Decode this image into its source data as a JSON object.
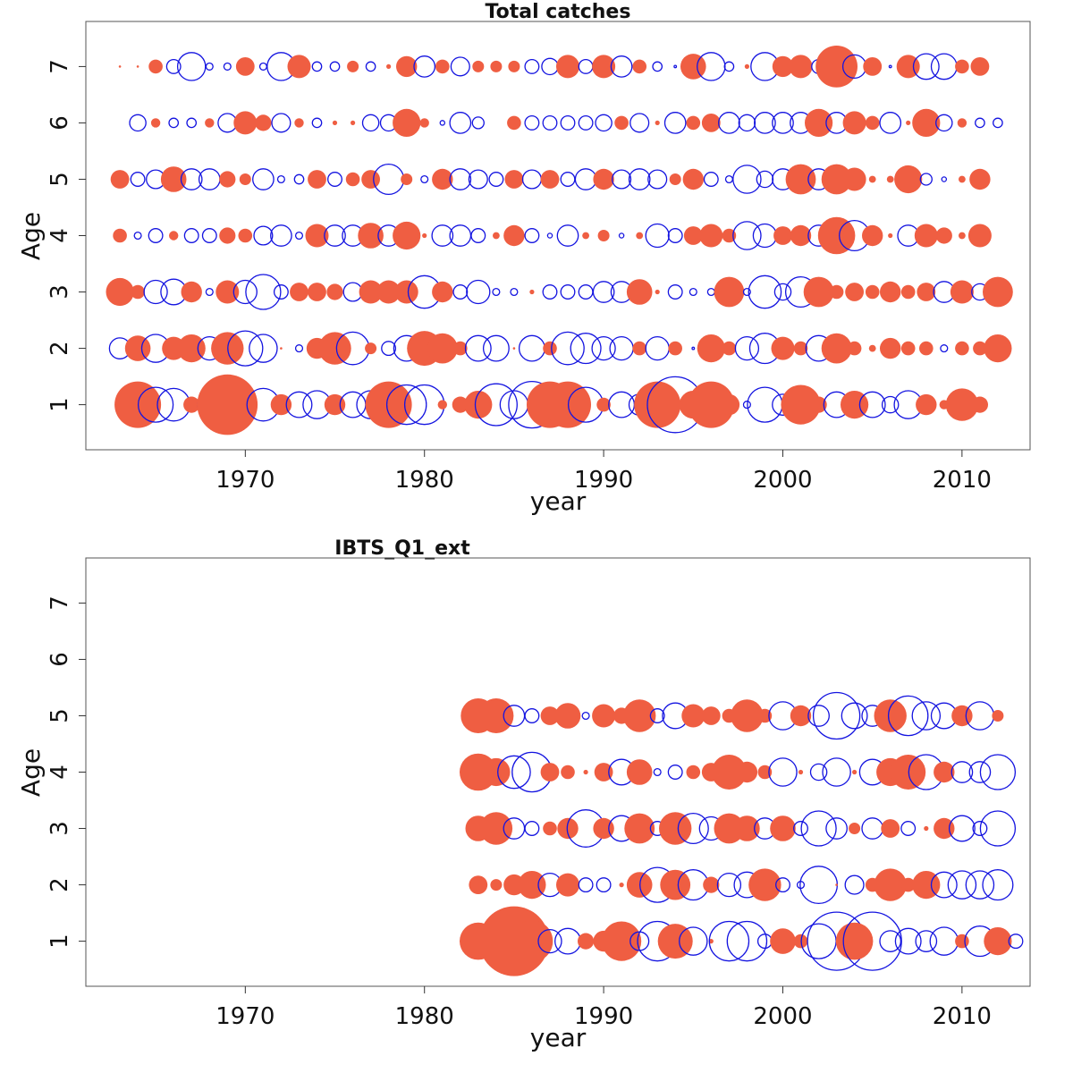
{
  "chart_data": [
    {
      "type": "scatter",
      "subtype": "bubble",
      "title": "Total catches",
      "xlabel": "year",
      "ylabel": "Age",
      "xlim": [
        1961.1,
        2013.8
      ],
      "ylim": [
        0.2,
        7.8
      ],
      "xticks": [
        1970,
        1980,
        1990,
        2000,
        2010
      ],
      "yticks": [
        1,
        2,
        3,
        4,
        5,
        6,
        7
      ],
      "encoding": "positive residual = filled red, negative residual = open blue, magnitude = bubble size",
      "colors": {
        "positive": "#ef5e42",
        "negative": "#1414e0"
      },
      "grid": false,
      "start_year": 1963,
      "series": [
        {
          "age": 7,
          "start_year": 1963,
          "values": [
            0.05,
            0.05,
            0.3,
            -0.3,
            -0.6,
            -0.15,
            -0.15,
            0.4,
            -0.15,
            -0.6,
            0.5,
            -0.2,
            -0.2,
            0.25,
            -0.2,
            0.1,
            0.45,
            -0.45,
            0.3,
            -0.4,
            0.25,
            0.25,
            0.25,
            -0.3,
            -0.35,
            0.5,
            -0.3,
            0.5,
            -0.45,
            0.3,
            -0.2,
            -0.05,
            0.55,
            -0.6,
            -0.2,
            0.1,
            -0.6,
            0.45,
            0.5,
            -0.3,
            0.9,
            -0.5,
            0.4,
            -0.05,
            0.5,
            -0.55,
            -0.55,
            0.3,
            0.4
          ]
        },
        {
          "age": 6,
          "start_year": 1963,
          "values": [
            null,
            -0.35,
            0.2,
            -0.2,
            -0.2,
            0.2,
            -0.4,
            0.5,
            0.35,
            -0.4,
            0.2,
            -0.2,
            0.1,
            0.1,
            -0.35,
            -0.35,
            0.6,
            0.2,
            -0.1,
            -0.45,
            -0.25,
            null,
            0.3,
            -0.3,
            -0.3,
            -0.3,
            -0.3,
            -0.35,
            0.3,
            -0.4,
            0.1,
            -0.45,
            0.3,
            0.4,
            -0.45,
            -0.35,
            -0.45,
            -0.45,
            -0.45,
            0.6,
            -0.45,
            0.5,
            0.3,
            -0.45,
            0.1,
            0.6,
            -0.35,
            0.2,
            -0.2,
            -0.2
          ]
        },
        {
          "age": 5,
          "start_year": 1963,
          "values": [
            0.4,
            -0.3,
            -0.4,
            0.55,
            -0.45,
            -0.45,
            0.35,
            0.25,
            -0.45,
            -0.15,
            -0.2,
            0.4,
            -0.3,
            0.3,
            0.4,
            -0.65,
            0.25,
            -0.15,
            0.45,
            -0.45,
            -0.4,
            -0.3,
            0.4,
            -0.4,
            0.4,
            -0.3,
            -0.45,
            0.45,
            -0.4,
            -0.45,
            -0.4,
            0.25,
            0.45,
            -0.3,
            -0.15,
            -0.6,
            -0.35,
            -0.45,
            0.65,
            -0.45,
            0.65,
            0.5,
            0.15,
            0.15,
            0.6,
            -0.25,
            -0.1,
            0.15,
            0.45
          ]
        },
        {
          "age": 4,
          "start_year": 1963,
          "values": [
            0.3,
            -0.15,
            -0.3,
            0.2,
            -0.3,
            -0.3,
            0.35,
            0.3,
            -0.4,
            -0.45,
            -0.15,
            0.5,
            -0.45,
            -0.45,
            0.55,
            -0.45,
            0.6,
            0.1,
            -0.45,
            -0.45,
            -0.3,
            0.15,
            0.45,
            -0.3,
            -0.1,
            -0.45,
            0.15,
            0.25,
            -0.1,
            0.15,
            -0.5,
            -0.3,
            0.4,
            0.5,
            0.3,
            -0.6,
            -0.5,
            0.4,
            0.45,
            -0.45,
            0.8,
            -0.65,
            0.45,
            0.1,
            -0.45,
            0.5,
            0.35,
            0.15,
            0.5
          ]
        },
        {
          "age": 3,
          "start_year": 1963,
          "values": [
            0.6,
            0.3,
            -0.5,
            -0.55,
            0.45,
            -0.15,
            0.5,
            -0.5,
            -0.75,
            -0.3,
            0.4,
            0.4,
            0.35,
            -0.4,
            0.5,
            0.5,
            0.5,
            -0.7,
            0.45,
            -0.3,
            -0.5,
            -0.15,
            -0.15,
            0.1,
            -0.3,
            -0.3,
            -0.3,
            -0.45,
            -0.45,
            0.55,
            0.1,
            -0.3,
            -0.15,
            -0.15,
            0.65,
            -0.15,
            -0.7,
            -0.35,
            -0.65,
            0.65,
            0.3,
            0.4,
            0.3,
            0.45,
            0.3,
            0.4,
            -0.45,
            0.5,
            -0.35,
            0.65
          ]
        },
        {
          "age": 2,
          "start_year": 1963,
          "values": [
            -0.45,
            0.55,
            -0.6,
            0.5,
            0.6,
            -0.5,
            0.7,
            -0.75,
            -0.6,
            0.05,
            -0.15,
            0.45,
            0.7,
            -0.7,
            0.25,
            -0.3,
            -0.55,
            0.75,
            0.65,
            0.3,
            -0.55,
            -0.55,
            0.05,
            -0.55,
            0.3,
            -0.7,
            -0.65,
            -0.5,
            -0.5,
            0.3,
            -0.5,
            0.3,
            -0.05,
            0.6,
            0.3,
            -0.5,
            -0.65,
            0.5,
            0.3,
            -0.55,
            0.65,
            0.3,
            0.15,
            0.45,
            0.3,
            0.3,
            -0.15,
            0.3,
            0.3,
            0.6
          ]
        },
        {
          "age": 1,
          "start_year": 1963,
          "values": [
            null,
            1.0,
            -0.75,
            -0.7,
            0.35,
            -0.5,
            1.3,
            null,
            -0.7,
            0.45,
            -0.55,
            -0.6,
            0.45,
            -0.55,
            -0.6,
            1.0,
            -0.85,
            -0.85,
            0.2,
            0.35,
            0.6,
            -0.9,
            -0.6,
            -1.0,
            1.0,
            1.0,
            -0.75,
            0.3,
            -0.55,
            -0.45,
            1.0,
            -1.2,
            0.6,
            1.0,
            0.45,
            -0.15,
            -0.75,
            -0.45,
            0.85,
            0.35,
            -0.55,
            0.6,
            -0.55,
            -0.35,
            -0.6,
            0.45,
            0.2,
            0.7,
            0.35
          ]
        }
      ]
    },
    {
      "type": "scatter",
      "subtype": "bubble",
      "title": "IBTS_Q1_ext",
      "xlabel": "year",
      "ylabel": "Age",
      "xlim": [
        1961.1,
        2013.8
      ],
      "ylim": [
        0.2,
        7.8
      ],
      "xticks": [
        1970,
        1980,
        1990,
        2000,
        2010
      ],
      "yticks": [
        1,
        2,
        3,
        4,
        5,
        6,
        7
      ],
      "encoding": "positive residual = filled red, negative residual = open blue, magnitude = bubble size",
      "colors": {
        "positive": "#ef5e42",
        "negative": "#1414e0"
      },
      "grid": false,
      "series": [
        {
          "age": 5,
          "start_year": 1983,
          "values": [
            0.75,
            0.75,
            -0.45,
            -0.3,
            0.4,
            0.55,
            -0.15,
            0.5,
            0.35,
            0.7,
            -0.3,
            -0.55,
            0.5,
            0.4,
            0.3,
            0.7,
            0.3,
            -0.6,
            0.45,
            -0.45,
            -1.0,
            -0.55,
            -0.45,
            0.7,
            -0.85,
            -0.6,
            -0.55,
            0.45,
            -0.6,
            0.25
          ]
        },
        {
          "age": 4,
          "start_year": 1983,
          "values": [
            0.8,
            0.6,
            -0.7,
            -0.85,
            0.4,
            0.3,
            0.1,
            0.4,
            -0.55,
            0.55,
            -0.15,
            -0.3,
            0.3,
            0.4,
            0.75,
            0.45,
            0.3,
            -0.6,
            0.1,
            -0.35,
            -0.6,
            0.1,
            -0.55,
            0.6,
            0.75,
            -0.75,
            0.45,
            -0.45,
            -0.45,
            -0.75
          ]
        },
        {
          "age": 3,
          "start_year": 1983,
          "values": [
            0.55,
            0.7,
            -0.45,
            -0.3,
            0.3,
            0.45,
            -0.8,
            0.45,
            -0.55,
            0.65,
            -0.3,
            0.7,
            -0.65,
            -0.5,
            0.65,
            0.55,
            -0.45,
            0.55,
            -0.3,
            -0.75,
            -0.45,
            0.25,
            -0.45,
            0.4,
            -0.3,
            0.1,
            0.45,
            -0.55,
            -0.3,
            -0.75
          ]
        },
        {
          "age": 2,
          "start_year": 1983,
          "values": [
            0.4,
            0.25,
            0.45,
            0.6,
            -0.5,
            0.5,
            -0.3,
            -0.3,
            0.1,
            0.55,
            -0.75,
            0.65,
            -0.65,
            0.35,
            -0.5,
            -0.55,
            0.7,
            -0.3,
            -0.15,
            -0.8,
            0.05,
            -0.4,
            0.3,
            0.7,
            0.3,
            0.6,
            -0.55,
            -0.6,
            -0.6,
            -0.65
          ]
        },
        {
          "age": 1,
          "start_year": 1983,
          "values": [
            0.8,
            0.9,
            1.5,
            0.9,
            -0.5,
            -0.55,
            0.35,
            0.45,
            0.85,
            -0.4,
            -0.85,
            0.75,
            -0.6,
            0.1,
            -0.85,
            -0.85,
            -0.3,
            0.55,
            0.3,
            -0.75,
            -1.25,
            0.8,
            -1.25,
            -0.45,
            -0.55,
            -0.45,
            -0.6,
            0.3,
            -0.65,
            0.6,
            -0.3
          ]
        }
      ]
    }
  ]
}
